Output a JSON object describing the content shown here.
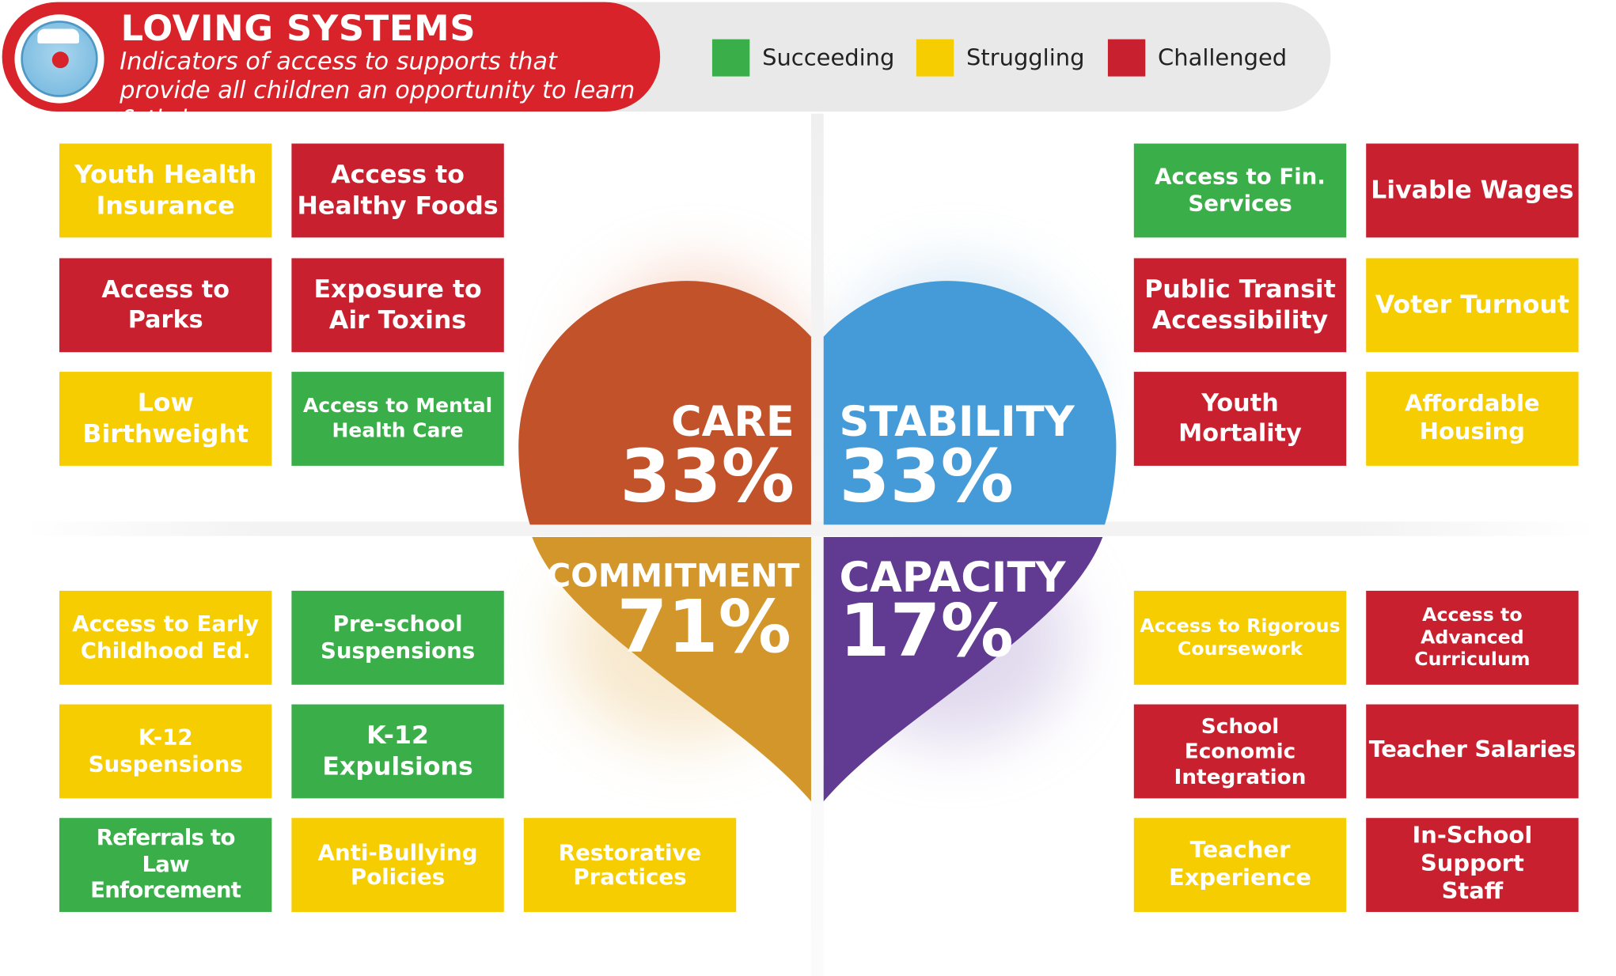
{
  "header": {
    "title": "LOVING SYSTEMS",
    "subtitle": "Indicators of access to supports that provide all children an opportunity to learn & thrive",
    "badge_icon": "scale-icon"
  },
  "legend": [
    {
      "label": "Succeeding",
      "color": "#3aae49"
    },
    {
      "label": "Struggling",
      "color": "#f6cd00"
    },
    {
      "label": "Challenged",
      "color": "#c8202f"
    }
  ],
  "quadrants": {
    "care": {
      "label": "CARE",
      "percent": "33%",
      "color": "#c1522a"
    },
    "stability": {
      "label": "STABILITY",
      "percent": "33%",
      "color": "#449bd7"
    },
    "commitment": {
      "label": "COMMITMENT",
      "percent": "71%",
      "color": "#d2962b"
    },
    "capacity": {
      "label": "CAPACITY",
      "percent": "17%",
      "color": "#613a91"
    }
  },
  "indicators": {
    "care": [
      {
        "label": "Youth Health Insurance",
        "status": "Struggling"
      },
      {
        "label": "Access to Healthy Foods",
        "status": "Challenged"
      },
      {
        "label": "Access to Parks",
        "status": "Challenged"
      },
      {
        "label": "Exposure to Air Toxins",
        "status": "Challenged"
      },
      {
        "label": "Low Birthweight",
        "status": "Struggling"
      },
      {
        "label": "Access to Mental Health Care",
        "status": "Succeeding"
      }
    ],
    "stability": [
      {
        "label": "Access to Fin. Services",
        "status": "Succeeding"
      },
      {
        "label": "Livable Wages",
        "status": "Challenged"
      },
      {
        "label": "Public Transit Accessibility",
        "status": "Challenged"
      },
      {
        "label": "Voter Turnout",
        "status": "Struggling"
      },
      {
        "label": "Youth Mortality",
        "status": "Challenged"
      },
      {
        "label": "Affordable Housing",
        "status": "Struggling"
      }
    ],
    "commitment": [
      {
        "label": "Access to Early Childhood Ed.",
        "status": "Struggling"
      },
      {
        "label": "Pre-school Suspensions",
        "status": "Succeeding"
      },
      {
        "label": "K-12 Suspensions",
        "status": "Struggling"
      },
      {
        "label": "K-12 Expulsions",
        "status": "Succeeding"
      },
      {
        "label": "Referrals to Law Enforcement",
        "status": "Succeeding"
      },
      {
        "label": "Anti-Bullying Policies",
        "status": "Struggling"
      },
      {
        "label": "Restorative Practices",
        "status": "Struggling"
      }
    ],
    "capacity": [
      {
        "label": "Access to Rigorous Coursework",
        "status": "Struggling"
      },
      {
        "label": "Access to Advanced Curriculum",
        "status": "Challenged"
      },
      {
        "label": "School Economic Integration",
        "status": "Challenged"
      },
      {
        "label": "Teacher Salaries",
        "status": "Challenged"
      },
      {
        "label": "Teacher Experience",
        "status": "Struggling"
      },
      {
        "label": "In-School Support Staff",
        "status": "Challenged"
      }
    ]
  }
}
